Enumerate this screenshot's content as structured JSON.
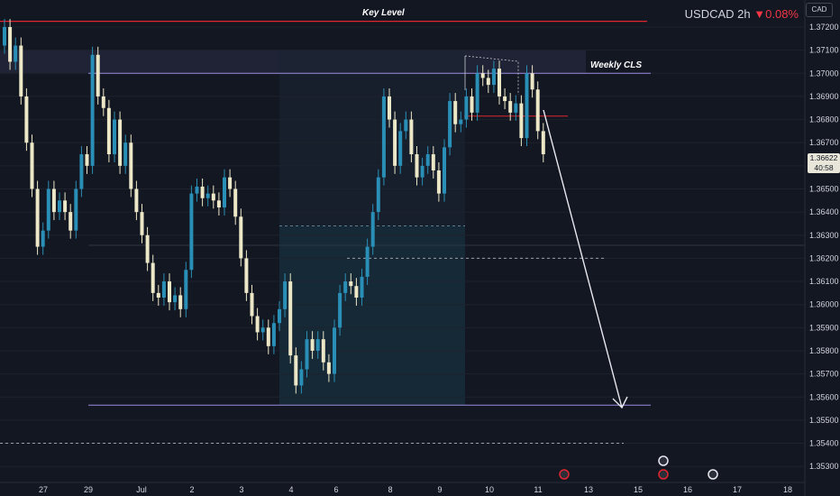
{
  "header": {
    "symbol": "USDCAD",
    "interval": "2h",
    "change": "▼0.08%"
  },
  "currency_badge": "CAD",
  "last_price": {
    "value": "1.36622",
    "countdown": "40:58"
  },
  "annotations": {
    "key_level": "Key Level",
    "weekly_cls": "Weekly CLS"
  },
  "colors": {
    "bull": "#2a8fb6",
    "bear": "#ece7c7",
    "key_level": "#e0262e",
    "level_line": "#9b8ce0",
    "arrow": "#e8e8ee"
  },
  "chart_data": {
    "type": "candlestick",
    "title": "",
    "xlabel": "",
    "ylabel": "",
    "ylim": [
      1.3525,
      1.3728
    ],
    "y_ticks": [
      "1.37200",
      "1.37100",
      "1.37000",
      "1.36900",
      "1.36800",
      "1.36700",
      "1.36600",
      "1.36500",
      "1.36400",
      "1.36300",
      "1.36200",
      "1.36100",
      "1.36000",
      "1.35900",
      "1.35800",
      "1.35700",
      "1.35600",
      "1.35500",
      "1.35400",
      "1.35300"
    ],
    "y_tick_values": [
      1.372,
      1.371,
      1.37,
      1.369,
      1.368,
      1.367,
      1.366,
      1.365,
      1.364,
      1.363,
      1.362,
      1.361,
      1.36,
      1.359,
      1.358,
      1.357,
      1.356,
      1.355,
      1.354,
      1.353
    ],
    "x_ticks": [
      "27",
      "29",
      "Jul",
      "2",
      "3",
      "4",
      "6",
      "8",
      "9",
      "10",
      "11",
      "13",
      "15",
      "16",
      "17",
      "18"
    ],
    "x_tick_index": [
      6,
      15,
      24,
      33,
      42,
      51,
      60,
      70,
      79,
      88,
      97,
      106,
      115,
      124,
      133,
      142
    ],
    "levels": [
      {
        "name": "key-level",
        "price": 1.37225,
        "style": "solid",
        "color": "key_level"
      },
      {
        "name": "weekly-cls-line",
        "price": 1.37,
        "style": "solid",
        "color": "level_line"
      },
      {
        "name": "target-line",
        "price": 1.35565,
        "style": "solid",
        "color": "level_line"
      },
      {
        "name": "resistance-short",
        "price": 1.36815,
        "style": "solid",
        "color": "key_level"
      },
      {
        "name": "dashed-mid",
        "price": 1.362,
        "style": "dashed"
      },
      {
        "name": "dashed-box-top",
        "price": 1.3634,
        "style": "dashed"
      },
      {
        "name": "dashed-low",
        "price": 1.354,
        "style": "dashed"
      }
    ],
    "closes": [
      1.372,
      1.3705,
      1.3712,
      1.369,
      1.367,
      1.365,
      1.3625,
      1.3632,
      1.365,
      1.364,
      1.3645,
      1.364,
      1.3632,
      1.365,
      1.3665,
      1.366,
      1.3708,
      1.369,
      1.3685,
      1.3665,
      1.368,
      1.366,
      1.367,
      1.365,
      1.364,
      1.363,
      1.3618,
      1.3605,
      1.3603,
      1.361,
      1.3601,
      1.3604,
      1.3598,
      1.3615,
      1.3648,
      1.3651,
      1.3646,
      1.3648,
      1.3645,
      1.3642,
      1.3655,
      1.365,
      1.3638,
      1.362,
      1.3605,
      1.3595,
      1.3588,
      1.359,
      1.3582,
      1.3592,
      1.3598,
      1.361,
      1.3578,
      1.3565,
      1.3572,
      1.3585,
      1.358,
      1.3585,
      1.3575,
      1.357,
      1.359,
      1.3605,
      1.361,
      1.3608,
      1.3603,
      1.3612,
      1.3625,
      1.364,
      1.3655,
      1.369,
      1.368,
      1.366,
      1.3675,
      1.368,
      1.3665,
      1.3655,
      1.366,
      1.3665,
      1.3658,
      1.3648,
      1.3668,
      1.3688,
      1.3678,
      1.368,
      1.369,
      1.3683,
      1.37,
      1.3698,
      1.3695,
      1.3702,
      1.369,
      1.3688,
      1.3683,
      1.3687,
      1.3672,
      1.37,
      1.3693,
      1.3675,
      1.3665
    ]
  }
}
